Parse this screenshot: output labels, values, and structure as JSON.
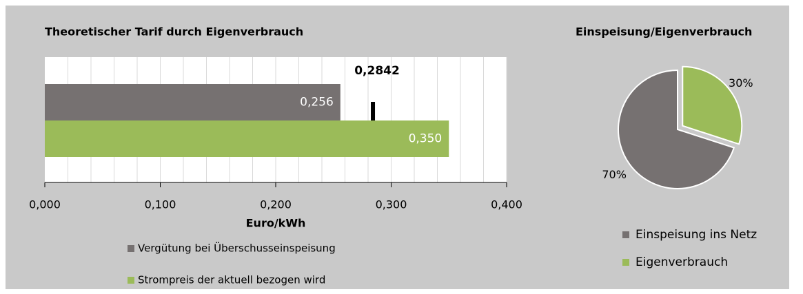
{
  "chart_data": [
    {
      "type": "bar",
      "horizontal": true,
      "title": "Theoretischer Tarif durch Eigenverbrauch",
      "categories": [
        null
      ],
      "series": [
        {
          "name": "Vergütung bei Überschusseinspeisung",
          "color": "#767171",
          "values": [
            0.256
          ],
          "value_labels": [
            "0,256"
          ]
        },
        {
          "name": "Strompreis der aktuell bezogen wird",
          "color": "#9bbb59",
          "values": [
            0.35
          ],
          "value_labels": [
            "0,350"
          ]
        }
      ],
      "marker": {
        "value": 0.2842,
        "label": "0,2842"
      },
      "xlabel": "Euro/kWh",
      "xlim": [
        0,
        0.4
      ],
      "xticks": [
        {
          "value": 0,
          "label": "0,000"
        },
        {
          "value": 0.1,
          "label": "0,100"
        },
        {
          "value": 0.2,
          "label": "0,200"
        },
        {
          "value": 0.3,
          "label": "0,300"
        },
        {
          "value": 0.4,
          "label": "0,400"
        }
      ],
      "xgrid": [
        0.02,
        0.04,
        0.06,
        0.08,
        0.1,
        0.12,
        0.14,
        0.16,
        0.18,
        0.2,
        0.22,
        0.24,
        0.26,
        0.28,
        0.3,
        0.32,
        0.34,
        0.36,
        0.38,
        0.4
      ],
      "grid": true,
      "legend": "bottom"
    },
    {
      "type": "pie",
      "title": "Einspeisung/Eigenverbrauch",
      "categories": [
        "Einspeisung ins Netz",
        "Eigenverbrauch"
      ],
      "values": [
        70,
        30
      ],
      "value_labels": [
        "70%",
        "30%"
      ],
      "colors": [
        "#767171",
        "#9bbb59"
      ],
      "legend": "bottom"
    }
  ]
}
